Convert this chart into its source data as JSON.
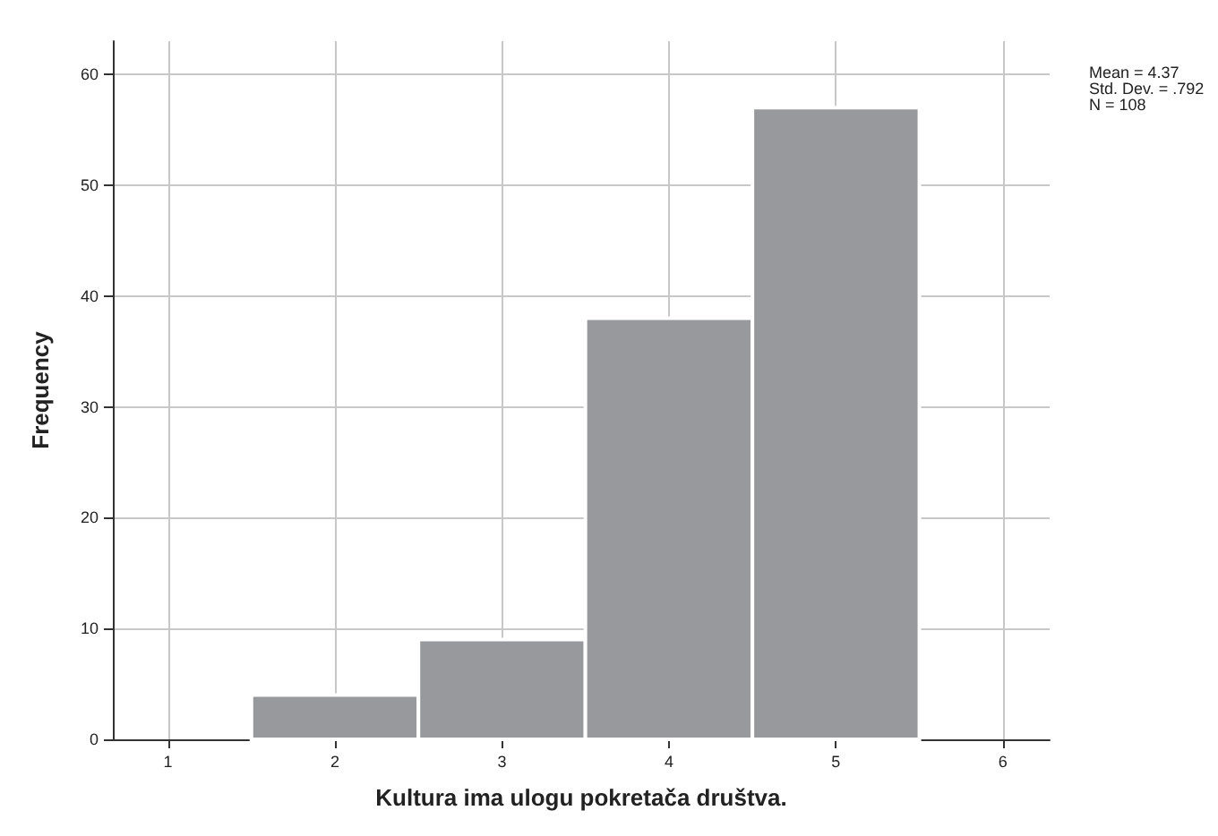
{
  "chart_data": {
    "type": "histogram",
    "xlabel": "Kultura ima ulogu pokretača društva.",
    "ylabel": "Frequency",
    "bins": [
      1.5,
      2.5,
      3.5,
      4.5,
      5.5
    ],
    "values": [
      4,
      9,
      38,
      57
    ],
    "color": "#98999d",
    "xlim": [
      0.67,
      6.28
    ],
    "xticks": [
      1,
      2,
      3,
      4,
      5,
      6
    ],
    "ylim": [
      0,
      63
    ],
    "yticks": [
      0,
      10,
      20,
      30,
      40,
      50,
      60
    ],
    "grid": true,
    "annotations": [
      "Mean = 4.37",
      "Std. Dev. = .792",
      "N = 108"
    ]
  }
}
